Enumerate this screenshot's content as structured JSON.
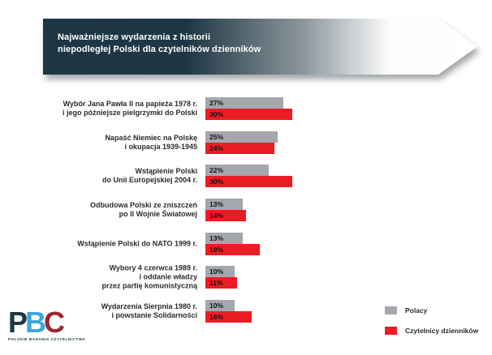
{
  "header": {
    "line1": "Najważniejsze wydarzenia z historii",
    "line2": "niepodległej Polski dla czytelników dzienników"
  },
  "colors": {
    "banner_dark": "#1d3643",
    "bar_gray": "#a4a7ad",
    "bar_red": "#ec1c24"
  },
  "chart_data": {
    "type": "bar",
    "orientation": "horizontal",
    "title": "Najważniejsze wydarzenia z historii niepodległej Polski dla czytelników dzienników",
    "unit": "%",
    "xlim": [
      0,
      35
    ],
    "grid": false,
    "legend_position": "bottom-right",
    "categories": [
      [
        "Wybór Jana Pawła II na papieża 1978 r.",
        "i jego późniejsze pielgrzymki do Polski"
      ],
      [
        "Napaść Niemiec na Polskę",
        "i okupacja 1939-1945"
      ],
      [
        "Wstąpienie Polski",
        "do Unii Europejskiej 2004 r."
      ],
      [
        "Odbudowa Polski ze zniszczeń",
        "po II Wojnie Światowej"
      ],
      [
        "Wstąpienie Polski do NATO 1999 r."
      ],
      [
        "Wybory 4 czerwca 1989 r.",
        "i oddanie władzy",
        "przez partię komunistyczną"
      ],
      [
        "Wydarzenia Sierpnia 1980 r.",
        "i powstanie Solidarności"
      ]
    ],
    "series": [
      {
        "name": "Polacy",
        "color": "#a4a7ad",
        "values": [
          27,
          25,
          22,
          13,
          13,
          10,
          10
        ]
      },
      {
        "name": "Czytelnicy dzienników",
        "color": "#ec1c24",
        "values": [
          30,
          24,
          30,
          14,
          19,
          11,
          16
        ]
      }
    ]
  },
  "legend": {
    "items": [
      {
        "label": "Polacy",
        "color": "#a4a7ad"
      },
      {
        "label": "Czytelnicy dzienników",
        "color": "#ec1c24"
      }
    ]
  },
  "logo": {
    "letters": [
      {
        "char": "P",
        "color": "#1d3643"
      },
      {
        "char": "B",
        "color": "#3aa8dc"
      },
      {
        "char": "C",
        "color": "#9c2531"
      }
    ],
    "subtitle": "POLSKIE BADANIA CZYTELNICTWA"
  }
}
